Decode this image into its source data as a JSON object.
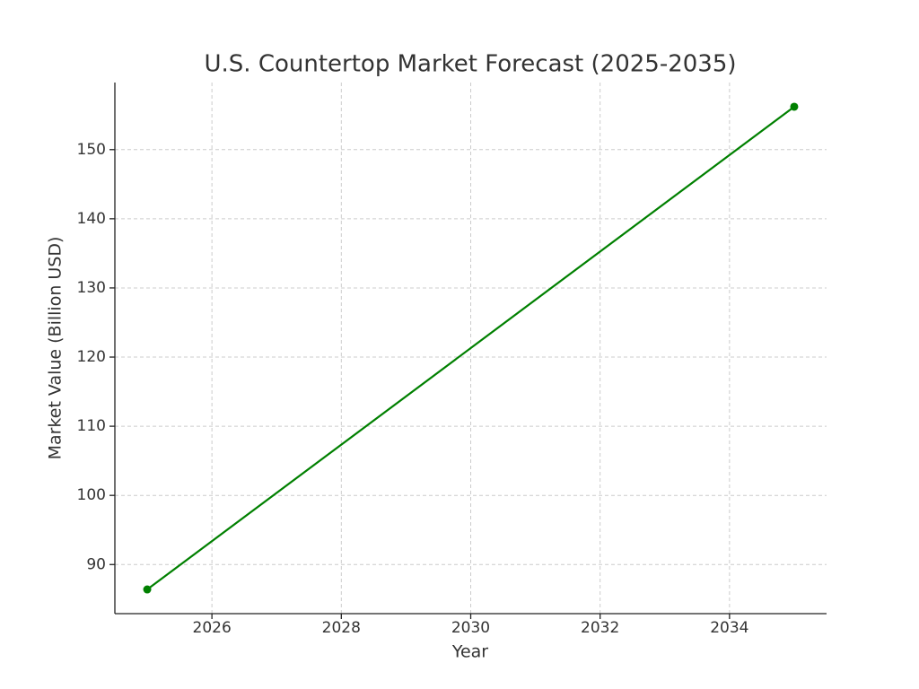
{
  "chart_data": {
    "type": "line",
    "title": "U.S. Countertop Market Forecast (2025-2035)",
    "x_label": "Year",
    "y_label": "Market Value (Billion USD)",
    "x": [
      2025,
      2035
    ],
    "series": [
      {
        "name": "Market Value",
        "color": "#008000",
        "values": [
          86.4,
          156.2
        ]
      }
    ],
    "xlim": [
      2024.5,
      2035.5
    ],
    "xticks": [
      2026,
      2028,
      2030,
      2032,
      2034
    ],
    "ylim": [
      82.9,
      159.7
    ],
    "yticks": [
      90,
      100,
      110,
      120,
      130,
      140,
      150
    ],
    "grid": true,
    "markers": true
  }
}
